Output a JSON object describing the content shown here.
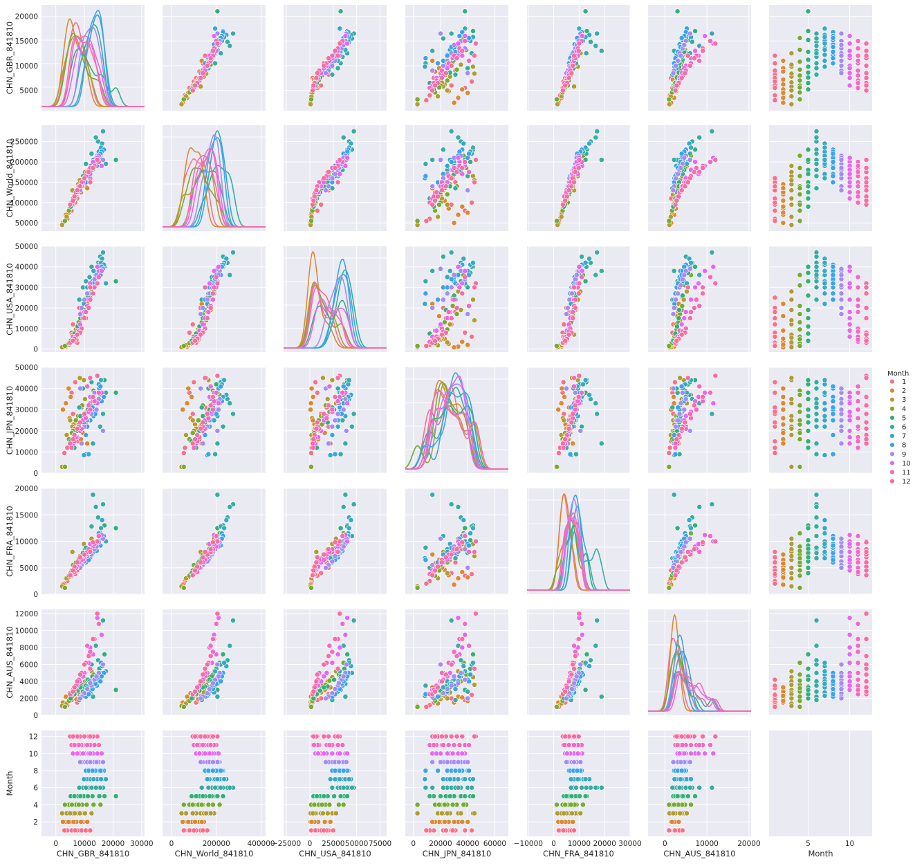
{
  "chart_data": {
    "type": "scatter",
    "title": "",
    "variables": [
      "CHN_GBR_841810",
      "CHN_World_841810",
      "CHN_USA_841810",
      "CHN_JPN_841810",
      "CHN_FRA_841810",
      "CHN_AUS_841810",
      "Month"
    ],
    "hue": "Month",
    "diagonal": "kde",
    "grid": true,
    "background": "#EAEAF2",
    "legend": {
      "title": "Month",
      "placement": "right",
      "entries": [
        "1",
        "2",
        "3",
        "4",
        "5",
        "6",
        "7",
        "8",
        "9",
        "10",
        "11",
        "12"
      ],
      "colors": [
        "#F77189",
        "#DC8932",
        "#AE9D31",
        "#77AB31",
        "#33B07A",
        "#36ADA4",
        "#38A9C5",
        "#3BA3EC",
        "#A48CF4",
        "#E866F4",
        "#F668C2",
        "#F66EA2"
      ]
    },
    "axes": {
      "CHN_GBR_841810": {
        "xlim": [
          -5000,
          31000
        ],
        "ylim": [
          900,
          22300
        ],
        "xticks": [
          "0",
          "10000",
          "20000",
          "30000"
        ],
        "yticks": [
          "5000",
          "10000",
          "15000",
          "20000"
        ]
      },
      "CHN_World_841810": {
        "xlim": [
          -40000,
          420000
        ],
        "ylim": [
          30000,
          290000
        ],
        "xticks": [
          "0",
          "200000",
          "400000"
        ],
        "yticks": [
          "50000",
          "100000",
          "150000",
          "200000",
          "250000"
        ]
      },
      "CHN_USA_841810": {
        "xlim": [
          -28000,
          82000
        ],
        "ylim": [
          -1500,
          50000
        ],
        "xticks": [
          "−25000",
          "0",
          "25000",
          "50000",
          "75000"
        ],
        "yticks": [
          "0",
          "10000",
          "20000",
          "30000",
          "40000",
          "50000"
        ]
      },
      "CHN_JPN_841810": {
        "xlim": [
          -6000,
          70000
        ],
        "ylim": [
          0,
          50000
        ],
        "xticks": [
          "0",
          "20000",
          "40000",
          "60000"
        ],
        "yticks": [
          "0",
          "10000",
          "20000",
          "30000",
          "40000",
          "50000"
        ]
      },
      "CHN_FRA_841810": {
        "xlim": [
          -10500,
          30000
        ],
        "ylim": [
          0,
          20000
        ],
        "xticks": [
          "−10000",
          "0",
          "10000",
          "20000",
          "30000"
        ],
        "yticks": [
          "0",
          "5000",
          "10000",
          "15000",
          "20000"
        ]
      },
      "CHN_AUS_841810": {
        "xlim": [
          -4000,
          20500
        ],
        "ylim": [
          0,
          12500
        ],
        "xticks": [
          "0",
          "10000",
          "20000"
        ],
        "yticks": [
          "0",
          "2000",
          "4000",
          "6000",
          "8000",
          "10000",
          "12000"
        ]
      },
      "Month": {
        "xlim": [
          0.3,
          12.7
        ],
        "ylim": [
          0.3,
          12.7
        ],
        "xticks": [
          "5",
          "10"
        ],
        "yticks": [
          "2",
          "4",
          "6",
          "8",
          "10",
          "12"
        ]
      }
    },
    "records": [
      [
        8200,
        130000,
        20000,
        22000,
        5000,
        2500,
        1
      ],
      [
        6000,
        95000,
        12000,
        28000,
        4000,
        2000,
        1
      ],
      [
        5500,
        80000,
        8000,
        38000,
        3500,
        1800,
        1
      ],
      [
        9000,
        150000,
        18000,
        31000,
        6000,
        3200,
        1
      ],
      [
        7500,
        110000,
        3000,
        15000,
        4500,
        1500,
        1
      ],
      [
        4000,
        60000,
        2000,
        12000,
        2500,
        1200,
        1
      ],
      [
        10500,
        140000,
        15000,
        24000,
        7000,
        3500,
        1
      ],
      [
        3000,
        55000,
        1500,
        9500,
        2000,
        1000,
        1
      ],
      [
        12000,
        160000,
        25000,
        29000,
        8000,
        4200,
        1
      ],
      [
        6800,
        100000,
        6000,
        43000,
        3800,
        2400,
        1
      ],
      [
        7200,
        120000,
        4500,
        20000,
        5200,
        1900,
        2
      ],
      [
        3500,
        70000,
        1200,
        33000,
        3000,
        2200,
        2
      ],
      [
        4800,
        85000,
        2500,
        26000,
        3600,
        2600,
        2
      ],
      [
        9500,
        145000,
        16000,
        19000,
        6500,
        3000,
        2
      ],
      [
        5200,
        90000,
        3500,
        36000,
        4200,
        2100,
        2
      ],
      [
        2500,
        50000,
        800,
        30000,
        1800,
        1500,
        2
      ],
      [
        8800,
        125000,
        9000,
        16000,
        5800,
        2800,
        2
      ],
      [
        6200,
        105000,
        5000,
        23000,
        4600,
        2300,
        2
      ],
      [
        11000,
        135000,
        22000,
        14000,
        7500,
        3300,
        2
      ],
      [
        4500,
        75000,
        2000,
        40000,
        3200,
        1700,
        2
      ],
      [
        5800,
        130000,
        7000,
        22000,
        8000,
        3000,
        3
      ],
      [
        9800,
        165000,
        24000,
        44000,
        9500,
        4500,
        3
      ],
      [
        3800,
        65000,
        1800,
        18000,
        3000,
        1400,
        3
      ],
      [
        7800,
        145000,
        12000,
        27000,
        6500,
        2700,
        3
      ],
      [
        12500,
        190000,
        28000,
        33000,
        10500,
        5200,
        3
      ],
      [
        2200,
        45000,
        900,
        3000,
        1500,
        1100,
        3
      ],
      [
        6600,
        110000,
        5500,
        21000,
        5000,
        2500,
        3
      ],
      [
        10200,
        175000,
        19000,
        35000,
        8500,
        4000,
        3
      ],
      [
        8400,
        155000,
        14000,
        45000,
        7200,
        3600,
        3
      ],
      [
        5000,
        95000,
        3200,
        25000,
        4000,
        2000,
        3
      ],
      [
        6000,
        100000,
        6000,
        20000,
        5500,
        2300,
        4
      ],
      [
        9200,
        140000,
        17000,
        32000,
        7500,
        3600,
        4
      ],
      [
        7000,
        120000,
        9500,
        25000,
        6000,
        2800,
        4
      ],
      [
        13200,
        185000,
        31000,
        39000,
        9000,
        4800,
        4
      ],
      [
        4600,
        80000,
        2800,
        16000,
        3500,
        1700,
        4
      ],
      [
        10800,
        165000,
        21000,
        29000,
        8200,
        4100,
        4
      ],
      [
        8000,
        135000,
        13000,
        23000,
        6800,
        3200,
        4
      ],
      [
        3200,
        55000,
        1500,
        3000,
        1200,
        1000,
        4
      ],
      [
        15600,
        215000,
        36000,
        37000,
        11500,
        6200,
        4
      ],
      [
        5600,
        95000,
        4800,
        19000,
        4500,
        2200,
        4
      ],
      [
        9800,
        150000,
        19000,
        24000,
        7800,
        3400,
        5
      ],
      [
        12800,
        180000,
        33000,
        35000,
        9200,
        4600,
        5
      ],
      [
        7600,
        125000,
        11000,
        20000,
        6200,
        2900,
        5
      ],
      [
        15200,
        200000,
        37000,
        42000,
        10200,
        5500,
        5
      ],
      [
        5200,
        90000,
        4000,
        15000,
        4000,
        2000,
        5
      ],
      [
        11200,
        170000,
        26000,
        30000,
        8600,
        4200,
        5
      ],
      [
        8600,
        140000,
        15000,
        27000,
        7000,
        3300,
        5
      ],
      [
        17000,
        230000,
        40000,
        44000,
        13000,
        7200,
        5
      ],
      [
        6500,
        110000,
        7500,
        12000,
        5000,
        2500,
        5
      ],
      [
        21000,
        205000,
        33000,
        38000,
        12500,
        3000,
        5
      ],
      [
        11800,
        180000,
        35000,
        25000,
        8500,
        4000,
        6
      ],
      [
        14800,
        250000,
        42000,
        35000,
        14500,
        6500,
        6
      ],
      [
        9500,
        165000,
        30000,
        40000,
        7800,
        2800,
        6
      ],
      [
        16500,
        275000,
        47000,
        28000,
        17000,
        11200,
        6
      ],
      [
        13000,
        205000,
        38000,
        14000,
        18800,
        2200,
        6
      ],
      [
        8200,
        135000,
        24000,
        31000,
        6800,
        1800,
        6
      ],
      [
        15500,
        230000,
        45000,
        22000,
        11000,
        5000,
        6
      ],
      [
        10500,
        195000,
        33000,
        9000,
        8800,
        3500,
        6
      ],
      [
        12500,
        220000,
        40000,
        43000,
        12800,
        6000,
        6
      ],
      [
        14000,
        260000,
        36000,
        33000,
        16500,
        8200,
        6
      ],
      [
        13500,
        200000,
        33000,
        30000,
        9000,
        4300,
        7
      ],
      [
        16200,
        245000,
        44000,
        37000,
        14000,
        5800,
        7
      ],
      [
        11000,
        170000,
        30000,
        22000,
        7500,
        3300,
        7
      ],
      [
        15000,
        225000,
        41000,
        42000,
        11500,
        4800,
        7
      ],
      [
        12200,
        190000,
        27000,
        25000,
        8000,
        2700,
        7
      ],
      [
        14500,
        215000,
        36000,
        33000,
        10000,
        4000,
        7
      ],
      [
        9800,
        160000,
        22000,
        8500,
        6800,
        2300,
        7
      ],
      [
        17500,
        195000,
        32000,
        38000,
        10000,
        5200,
        7
      ],
      [
        13200,
        205000,
        38000,
        27000,
        9500,
        3700,
        7
      ],
      [
        15800,
        235000,
        42000,
        44000,
        12500,
        6200,
        7
      ],
      [
        14300,
        190000,
        35000,
        30000,
        8200,
        3500,
        8
      ],
      [
        16800,
        230000,
        41000,
        36000,
        11000,
        5000,
        8
      ],
      [
        12000,
        170000,
        30000,
        25000,
        7000,
        2800,
        8
      ],
      [
        15200,
        210000,
        38000,
        40000,
        9500,
        4200,
        8
      ],
      [
        10500,
        150000,
        24000,
        18000,
        6000,
        2200,
        8
      ],
      [
        13800,
        200000,
        34000,
        28000,
        8800,
        3700,
        8
      ],
      [
        11500,
        165000,
        27000,
        9000,
        6500,
        2500,
        8
      ],
      [
        16000,
        225000,
        40000,
        34000,
        10500,
        4600,
        8
      ],
      [
        12800,
        185000,
        32000,
        31000,
        7800,
        3100,
        8
      ],
      [
        15600,
        220000,
        36000,
        41000,
        9200,
        4000,
        8
      ],
      [
        12500,
        180000,
        30000,
        28000,
        7500,
        3500,
        9
      ],
      [
        15000,
        215000,
        38000,
        35000,
        9800,
        5000,
        9
      ],
      [
        10000,
        160000,
        24000,
        22000,
        6200,
        2600,
        9
      ],
      [
        13500,
        195000,
        34000,
        38000,
        8500,
        4200,
        9
      ],
      [
        9000,
        140000,
        20000,
        14000,
        5500,
        2200,
        9
      ],
      [
        14200,
        210000,
        36000,
        30000,
        9000,
        4600,
        9
      ],
      [
        11000,
        170000,
        27000,
        25000,
        7200,
        3100,
        9
      ],
      [
        16500,
        205000,
        39000,
        20000,
        10500,
        6000,
        9
      ],
      [
        12000,
        185000,
        31000,
        33000,
        8000,
        3800,
        9
      ],
      [
        8500,
        130000,
        17000,
        40000,
        5000,
        2000,
        9
      ],
      [
        10000,
        160000,
        18000,
        27000,
        7000,
        5000,
        10
      ],
      [
        13000,
        200000,
        30000,
        34000,
        9000,
        7200,
        10
      ],
      [
        8500,
        140000,
        12000,
        20000,
        6000,
        4000,
        10
      ],
      [
        16000,
        190000,
        38000,
        38000,
        11200,
        9500,
        10
      ],
      [
        6000,
        110000,
        6000,
        14000,
        4500,
        3000,
        10
      ],
      [
        11500,
        180000,
        24000,
        29000,
        8000,
        6200,
        10
      ],
      [
        9500,
        150000,
        15000,
        25000,
        6500,
        4600,
        10
      ],
      [
        14500,
        210000,
        40000,
        33000,
        10000,
        11500,
        10
      ],
      [
        7500,
        125000,
        9000,
        17000,
        5200,
        3500,
        10
      ],
      [
        12000,
        170000,
        32000,
        36000,
        9500,
        8000,
        10
      ],
      [
        9000,
        150000,
        10000,
        21000,
        6500,
        5000,
        11
      ],
      [
        12000,
        185000,
        24000,
        30000,
        8500,
        7500,
        11
      ],
      [
        7000,
        125000,
        6000,
        17000,
        5000,
        3500,
        11
      ],
      [
        15000,
        200000,
        35000,
        38000,
        11000,
        10800,
        11
      ],
      [
        5500,
        100000,
        3500,
        12000,
        3800,
        2500,
        11
      ],
      [
        10500,
        165000,
        18000,
        26000,
        7500,
        6200,
        11
      ],
      [
        8000,
        140000,
        8500,
        22000,
        6000,
        4200,
        11
      ],
      [
        13500,
        190000,
        30000,
        34000,
        9500,
        9000,
        11
      ],
      [
        6500,
        115000,
        4500,
        15000,
        4200,
        3000,
        11
      ],
      [
        11000,
        175000,
        21000,
        41000,
        8000,
        8200,
        11
      ],
      [
        8500,
        140000,
        8000,
        24000,
        7000,
        4800,
        12
      ],
      [
        11500,
        175000,
        20000,
        32000,
        8500,
        7000,
        12
      ],
      [
        6500,
        115000,
        5000,
        18000,
        5200,
        3300,
        12
      ],
      [
        14500,
        205000,
        32000,
        46000,
        10000,
        12000,
        12
      ],
      [
        5000,
        95000,
        3000,
        14000,
        3600,
        2500,
        12
      ],
      [
        10000,
        160000,
        15000,
        28000,
        7500,
        6000,
        12
      ],
      [
        7500,
        130000,
        7000,
        21000,
        6000,
        4000,
        12
      ],
      [
        13000,
        185000,
        27000,
        36000,
        9800,
        9000,
        12
      ],
      [
        6000,
        105000,
        4000,
        16000,
        4500,
        2800,
        12
      ],
      [
        12000,
        150000,
        30000,
        45000,
        8000,
        5500,
        12
      ]
    ]
  }
}
